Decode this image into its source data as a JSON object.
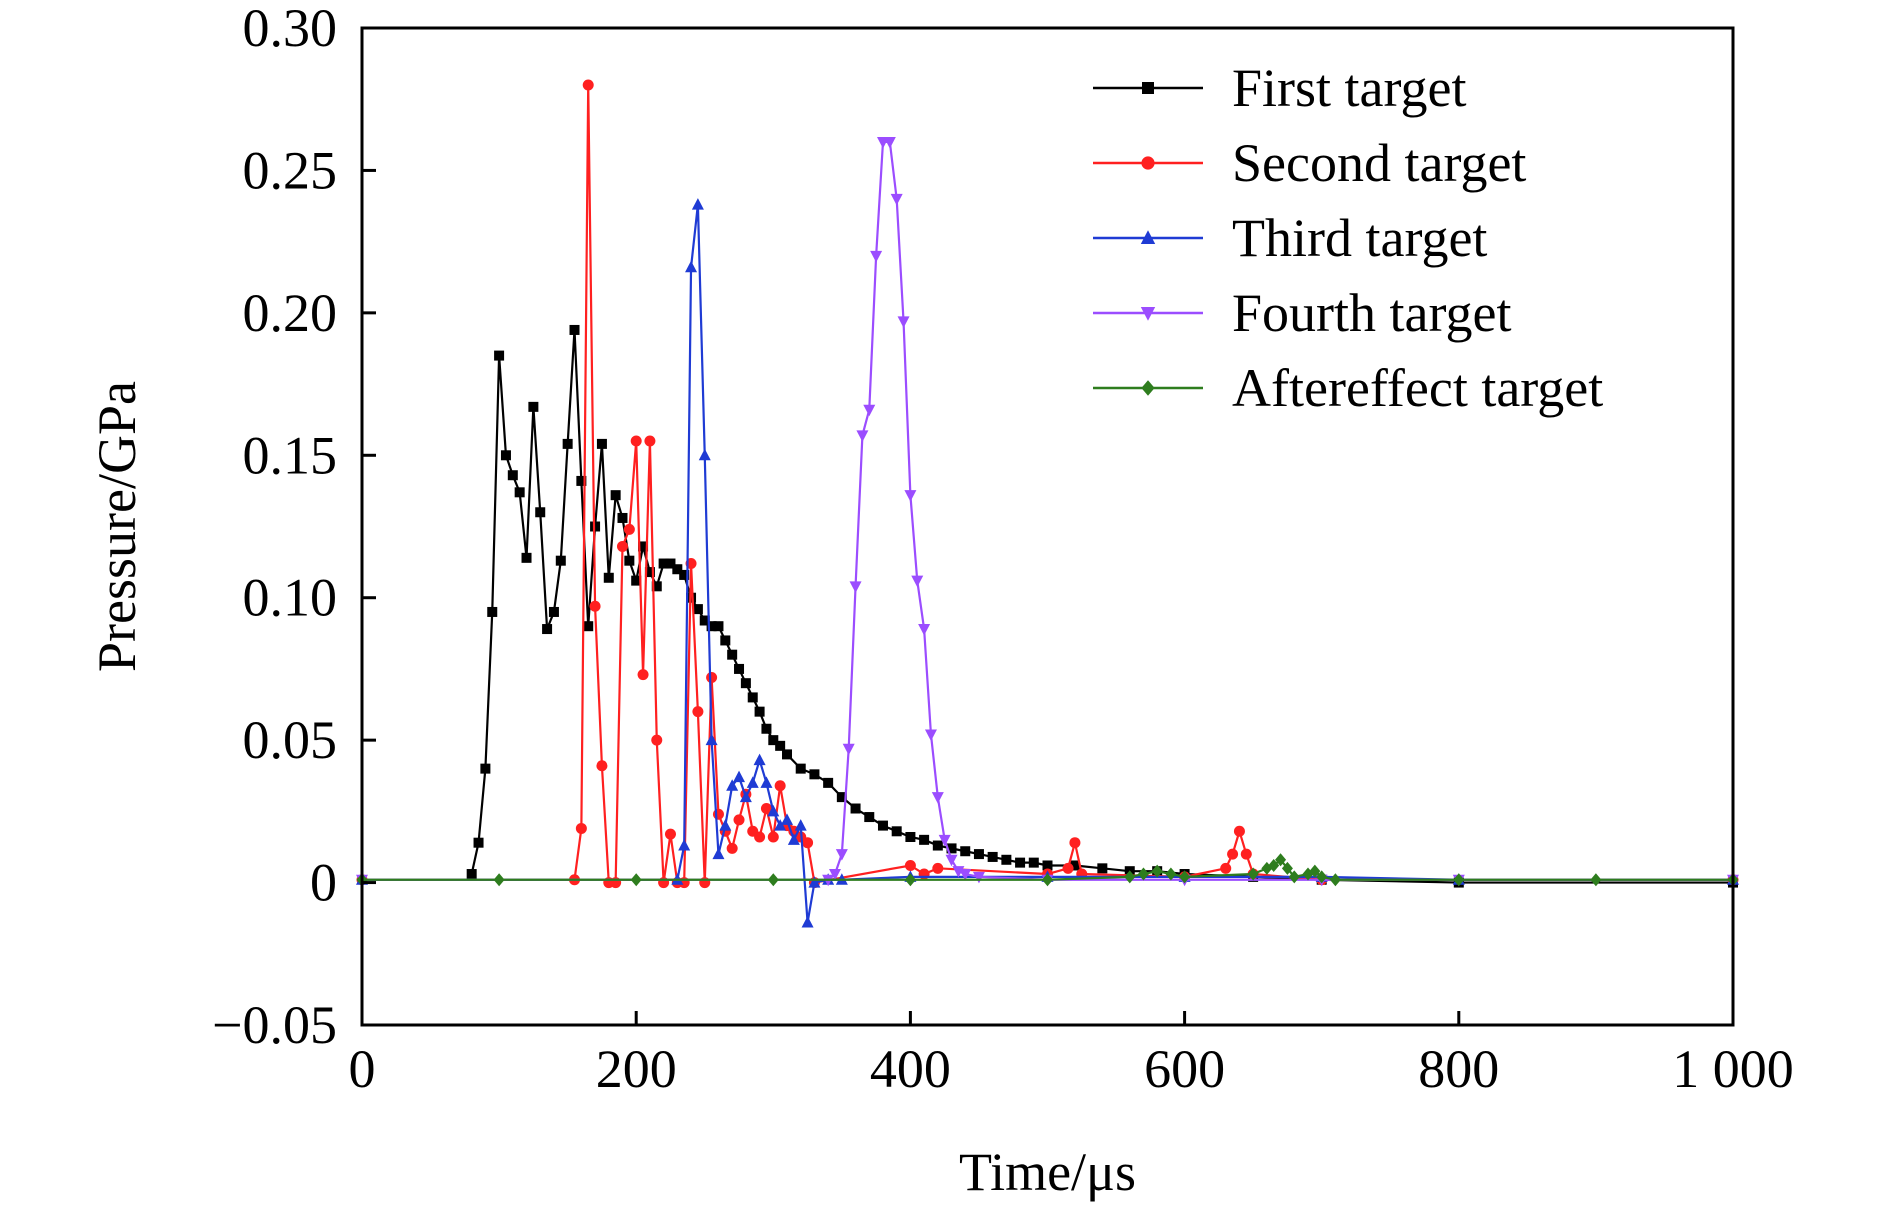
{
  "chart_data": {
    "type": "line",
    "xlabel": "Time/μs",
    "ylabel": "Pressure/GPa",
    "xlim": [
      0,
      1000
    ],
    "ylim": [
      -0.05,
      0.3
    ],
    "x_ticks": [
      0,
      200,
      400,
      600,
      800,
      1000
    ],
    "x_tick_labels": [
      "0",
      "200",
      "400",
      "600",
      "800",
      "1 000"
    ],
    "y_ticks": [
      -0.05,
      0,
      0.05,
      0.1,
      0.15,
      0.2,
      0.25,
      0.3
    ],
    "y_tick_labels": [
      "−0.05",
      "0",
      "0.05",
      "0.10",
      "0.15",
      "0.20",
      "0.25",
      "0.30"
    ],
    "grid": false,
    "legend_position": "top-right",
    "series": [
      {
        "name": "First target",
        "color": "#000000",
        "marker": "square",
        "x": [
          80,
          85,
          90,
          95,
          100,
          105,
          110,
          115,
          120,
          125,
          130,
          135,
          140,
          145,
          150,
          155,
          160,
          165,
          170,
          175,
          180,
          185,
          190,
          195,
          200,
          205,
          210,
          215,
          220,
          225,
          230,
          235,
          240,
          245,
          250,
          255,
          260,
          265,
          270,
          275,
          280,
          285,
          290,
          295,
          300,
          305,
          310,
          320,
          330,
          340,
          350,
          360,
          370,
          380,
          390,
          400,
          410,
          420,
          430,
          440,
          450,
          460,
          470,
          480,
          490,
          500,
          520,
          540,
          560,
          580,
          600,
          650,
          700,
          800,
          1000
        ],
        "y": [
          0.003,
          0.014,
          0.04,
          0.095,
          0.185,
          0.15,
          0.143,
          0.137,
          0.114,
          0.167,
          0.13,
          0.089,
          0.095,
          0.113,
          0.154,
          0.194,
          0.141,
          0.09,
          0.125,
          0.154,
          0.107,
          0.136,
          0.128,
          0.113,
          0.106,
          0.118,
          0.109,
          0.104,
          0.112,
          0.112,
          0.11,
          0.108,
          0.1,
          0.096,
          0.092,
          0.09,
          0.09,
          0.085,
          0.08,
          0.075,
          0.07,
          0.065,
          0.06,
          0.054,
          0.05,
          0.048,
          0.045,
          0.04,
          0.038,
          0.035,
          0.03,
          0.026,
          0.023,
          0.02,
          0.018,
          0.016,
          0.015,
          0.013,
          0.012,
          0.011,
          0.01,
          0.009,
          0.008,
          0.007,
          0.007,
          0.006,
          0.006,
          0.005,
          0.004,
          0.004,
          0.003,
          0.002,
          0.001,
          0.0,
          0.0
        ]
      },
      {
        "name": "Second target",
        "color": "#ff2020",
        "marker": "circle",
        "x": [
          0,
          155,
          160,
          165,
          170,
          175,
          180,
          185,
          190,
          195,
          200,
          205,
          210,
          215,
          220,
          225,
          230,
          235,
          240,
          245,
          250,
          255,
          260,
          265,
          270,
          275,
          280,
          285,
          290,
          295,
          300,
          305,
          310,
          315,
          320,
          325,
          330,
          400,
          410,
          420,
          500,
          515,
          520,
          525,
          600,
          630,
          635,
          640,
          645,
          650,
          700,
          1000
        ],
        "y": [
          0.001,
          0.001,
          0.019,
          0.28,
          0.097,
          0.041,
          0.0,
          0.0,
          0.118,
          0.124,
          0.155,
          0.073,
          0.155,
          0.05,
          0.0,
          0.017,
          0.0,
          0.0,
          0.112,
          0.06,
          0.0,
          0.072,
          0.024,
          0.018,
          0.012,
          0.022,
          0.031,
          0.018,
          0.016,
          0.026,
          0.016,
          0.034,
          0.02,
          0.018,
          0.016,
          0.014,
          0.0,
          0.006,
          0.003,
          0.005,
          0.003,
          0.005,
          0.014,
          0.003,
          0.002,
          0.005,
          0.01,
          0.018,
          0.01,
          0.003,
          0.001,
          0.001
        ]
      },
      {
        "name": "Third target",
        "color": "#1f3bd4",
        "marker": "triangle-up",
        "x": [
          0,
          230,
          235,
          240,
          245,
          250,
          255,
          260,
          265,
          270,
          275,
          280,
          285,
          290,
          295,
          300,
          305,
          310,
          315,
          320,
          325,
          330,
          340,
          350,
          400,
          500,
          600,
          700,
          800,
          1000
        ],
        "y": [
          0.001,
          0.001,
          0.013,
          0.216,
          0.238,
          0.15,
          0.05,
          0.01,
          0.02,
          0.034,
          0.037,
          0.03,
          0.035,
          0.043,
          0.035,
          0.025,
          0.02,
          0.022,
          0.015,
          0.02,
          -0.014,
          0.0,
          0.001,
          0.001,
          0.002,
          0.002,
          0.002,
          0.002,
          0.001,
          0.001
        ]
      },
      {
        "name": "Fourth target",
        "color": "#9b4dff",
        "marker": "triangle-down",
        "x": [
          0,
          340,
          345,
          350,
          355,
          360,
          365,
          370,
          375,
          380,
          385,
          390,
          395,
          400,
          405,
          410,
          415,
          420,
          425,
          430,
          435,
          440,
          450,
          500,
          600,
          700,
          800,
          1000
        ],
        "y": [
          0.001,
          0.001,
          0.003,
          0.01,
          0.047,
          0.104,
          0.157,
          0.166,
          0.22,
          0.26,
          0.26,
          0.24,
          0.197,
          0.136,
          0.106,
          0.089,
          0.052,
          0.03,
          0.015,
          0.008,
          0.004,
          0.003,
          0.002,
          0.001,
          0.001,
          0.001,
          0.001,
          0.001
        ]
      },
      {
        "name": "Aftereffect target",
        "color": "#2e7d1e",
        "marker": "diamond",
        "x": [
          0,
          100,
          200,
          300,
          400,
          500,
          560,
          570,
          580,
          590,
          600,
          650,
          660,
          665,
          670,
          675,
          680,
          690,
          695,
          700,
          710,
          800,
          900,
          1000
        ],
        "y": [
          0.001,
          0.001,
          0.001,
          0.001,
          0.001,
          0.001,
          0.002,
          0.003,
          0.004,
          0.003,
          0.002,
          0.003,
          0.005,
          0.006,
          0.008,
          0.005,
          0.002,
          0.003,
          0.004,
          0.002,
          0.001,
          0.001,
          0.001,
          0.001
        ]
      }
    ]
  }
}
